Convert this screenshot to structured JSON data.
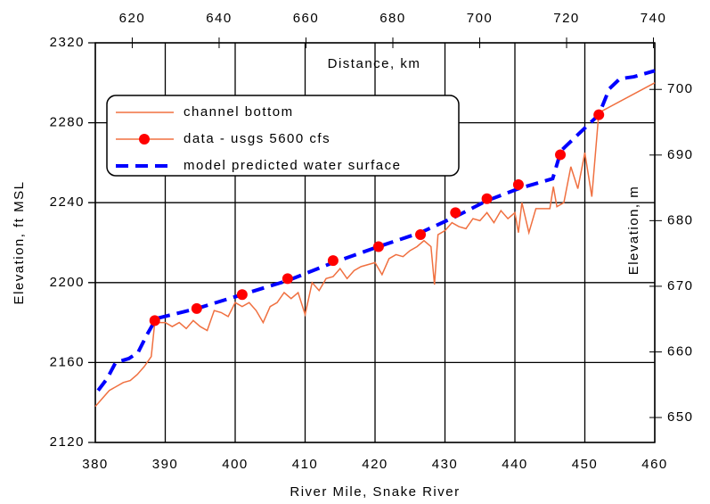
{
  "chart_data": {
    "type": "line",
    "title": "Distance, km",
    "x_label": "River Mile, Snake River",
    "y_label": "Elevation, ft MSL",
    "y2_label": "Elevation, m",
    "xlim": [
      380,
      460
    ],
    "xticks": [
      380,
      390,
      400,
      410,
      420,
      430,
      440,
      450,
      460
    ],
    "ylim": [
      2120,
      2320
    ],
    "yticks": [
      2120,
      2160,
      2200,
      2240,
      2280,
      2320
    ],
    "x2lim": [
      611.5,
      740.3
    ],
    "x2ticks": [
      620,
      640,
      660,
      680,
      700,
      720,
      740
    ],
    "y2lim": [
      646.2,
      707.1
    ],
    "y2ticks": [
      650,
      660,
      670,
      680,
      690,
      700
    ],
    "grid": true,
    "legend": "upper left",
    "series": [
      {
        "name": "channel bottom",
        "color": "#f07040",
        "style": "solid",
        "x": [
          380,
          382,
          384,
          385,
          386,
          387,
          388,
          388.5,
          390,
          391,
          392,
          393,
          394,
          395,
          396,
          397,
          398,
          399,
          400,
          401,
          402,
          403,
          404,
          405,
          406,
          407,
          408,
          409,
          410,
          411,
          412,
          413,
          414,
          415,
          416,
          417,
          418,
          419,
          420,
          421,
          422,
          423,
          424,
          425,
          426,
          427,
          428,
          428.5,
          429,
          430,
          431,
          432,
          433,
          434,
          435,
          436,
          437,
          438,
          439,
          440,
          440.5,
          441,
          442,
          443,
          444,
          445,
          445.5,
          446,
          447,
          448,
          449,
          450,
          451,
          452,
          460
        ],
        "values": [
          2138,
          2146,
          2150,
          2151,
          2154,
          2158,
          2163,
          2180,
          2180,
          2178,
          2180,
          2177,
          2181,
          2178,
          2176,
          2186,
          2185,
          2183,
          2190,
          2188,
          2190,
          2186,
          2180,
          2188,
          2190,
          2195,
          2192,
          2195,
          2184,
          2200,
          2196,
          2202,
          2203,
          2207,
          2202,
          2206,
          2208,
          2209,
          2210,
          2204,
          2212,
          2214,
          2213,
          2216,
          2218,
          2221,
          2218,
          2199,
          2224,
          2226,
          2230,
          2228,
          2227,
          2232,
          2231,
          2235,
          2230,
          2236,
          2232,
          2235,
          2225,
          2240,
          2225,
          2237,
          2237,
          2237,
          2248,
          2238,
          2240,
          2258,
          2247,
          2265,
          2243,
          2285,
          2300
        ]
      },
      {
        "name": "data - usgs 5600 cfs",
        "color": "#ff0000",
        "style": "marker",
        "x": [
          388.5,
          394.5,
          401,
          407.5,
          414,
          420.5,
          426.5,
          431.5,
          436,
          440.5,
          446.5,
          452
        ],
        "values": [
          2181,
          2187,
          2194,
          2202,
          2211,
          2218,
          2224,
          2235,
          2242,
          2249,
          2264,
          2284
        ]
      },
      {
        "name": "model predicted water surface",
        "color": "#0000ff",
        "style": "dashed",
        "x": [
          380.4,
          381.7,
          382.9,
          384.8,
          386.1,
          387.4,
          388.7,
          394.5,
          401,
          407.5,
          414,
          420.5,
          426.5,
          431.5,
          436,
          440.5,
          445.4,
          446.6,
          452,
          453.5,
          455,
          457,
          460
        ],
        "values": [
          2146,
          2152,
          2160,
          2162,
          2165,
          2174,
          2182,
          2187,
          2194,
          2201,
          2210,
          2218,
          2225,
          2233,
          2241,
          2247,
          2252,
          2266,
          2284,
          2297,
          2302,
          2303,
          2306
        ]
      }
    ]
  }
}
